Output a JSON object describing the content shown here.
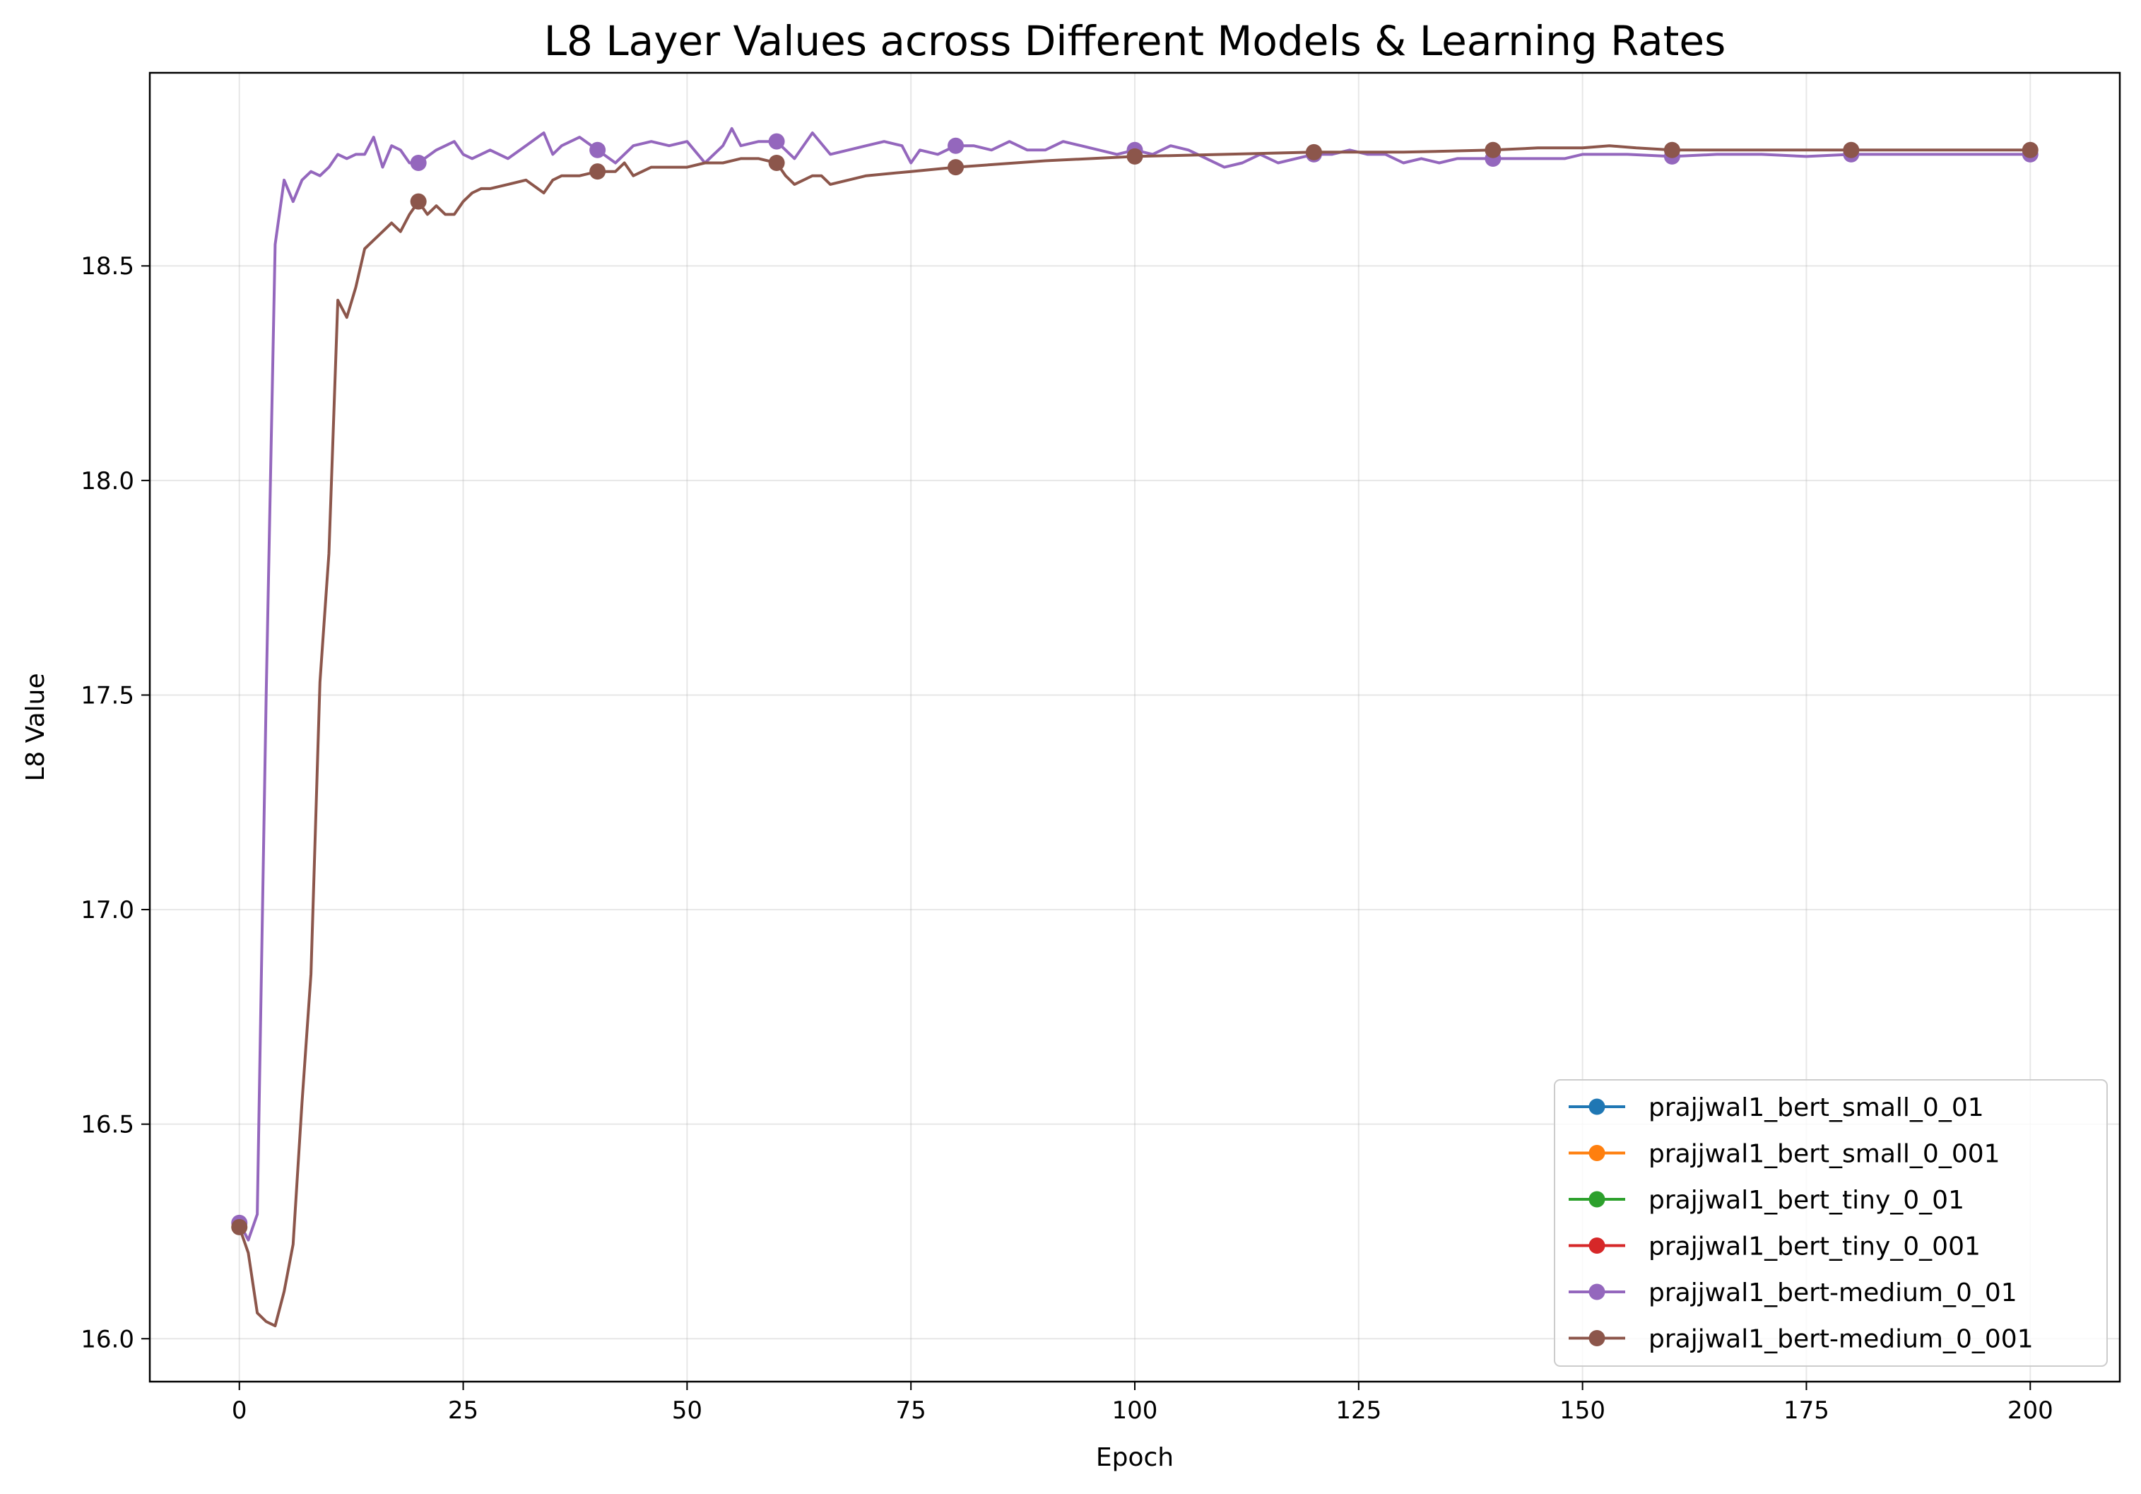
{
  "chart_data": {
    "type": "line",
    "title": "L8 Layer Values across Different Models & Learning Rates",
    "xlabel": "Epoch",
    "ylabel": "L8 Value",
    "xlim": [
      -10,
      210
    ],
    "ylim": [
      15.9,
      18.95
    ],
    "xticks": [
      0,
      25,
      50,
      75,
      100,
      125,
      150,
      175,
      200
    ],
    "yticks": [
      16.0,
      16.5,
      17.0,
      17.5,
      18.0,
      18.5
    ],
    "ytick_labels": [
      "16.0",
      "16.5",
      "17.0",
      "17.5",
      "18.0",
      "18.5"
    ],
    "grid": true,
    "legend_position": "lower right",
    "marker_every": 20,
    "series": [
      {
        "name": "prajjwal1_bert_small_0_01",
        "color": "#1f77b4",
        "x": [],
        "values": []
      },
      {
        "name": "prajjwal1_bert_small_0_001",
        "color": "#ff7f0e",
        "x": [],
        "values": []
      },
      {
        "name": "prajjwal1_bert_tiny_0_01",
        "color": "#2ca02c",
        "x": [],
        "values": []
      },
      {
        "name": "prajjwal1_bert_tiny_0_001",
        "color": "#d62728",
        "x": [],
        "values": []
      },
      {
        "name": "prajjwal1_bert-medium_0_01",
        "color": "#9467bd",
        "x": [
          0,
          1,
          2,
          3,
          4,
          5,
          6,
          7,
          8,
          9,
          10,
          11,
          12,
          13,
          14,
          15,
          16,
          17,
          18,
          19,
          20,
          22,
          24,
          25,
          26,
          28,
          30,
          32,
          34,
          35,
          36,
          38,
          40,
          42,
          44,
          46,
          48,
          50,
          52,
          54,
          55,
          56,
          58,
          60,
          62,
          64,
          66,
          68,
          70,
          72,
          74,
          75,
          76,
          78,
          80,
          82,
          84,
          86,
          88,
          90,
          92,
          94,
          96,
          98,
          100,
          102,
          104,
          106,
          108,
          110,
          112,
          114,
          116,
          118,
          120,
          122,
          124,
          126,
          128,
          130,
          132,
          134,
          136,
          138,
          140,
          142,
          144,
          146,
          148,
          150,
          155,
          160,
          165,
          170,
          175,
          180,
          185,
          190,
          195,
          200
        ],
        "values": [
          16.27,
          16.23,
          16.29,
          17.5,
          18.55,
          18.7,
          18.65,
          18.7,
          18.72,
          18.71,
          18.73,
          18.76,
          18.75,
          18.76,
          18.76,
          18.8,
          18.73,
          18.78,
          18.77,
          18.74,
          18.74,
          18.77,
          18.79,
          18.76,
          18.75,
          18.77,
          18.75,
          18.78,
          18.81,
          18.76,
          18.78,
          18.8,
          18.77,
          18.74,
          18.78,
          18.79,
          18.78,
          18.79,
          18.74,
          18.78,
          18.82,
          18.78,
          18.79,
          18.79,
          18.75,
          18.81,
          18.76,
          18.77,
          18.78,
          18.79,
          18.78,
          18.74,
          18.77,
          18.76,
          18.78,
          18.78,
          18.77,
          18.79,
          18.77,
          18.77,
          18.79,
          18.78,
          18.77,
          18.76,
          18.77,
          18.76,
          18.78,
          18.77,
          18.75,
          18.73,
          18.74,
          18.76,
          18.74,
          18.75,
          18.76,
          18.76,
          18.77,
          18.76,
          18.76,
          18.74,
          18.75,
          18.74,
          18.75,
          18.75,
          18.75,
          18.75,
          18.75,
          18.75,
          18.75,
          18.76,
          18.76,
          18.755,
          18.76,
          18.76,
          18.755,
          18.76,
          18.76,
          18.76,
          18.76,
          18.76
        ]
      },
      {
        "name": "prajjwal1_bert-medium_0_001",
        "color": "#8c564b",
        "x": [
          0,
          1,
          2,
          3,
          4,
          5,
          6,
          7,
          8,
          9,
          10,
          11,
          12,
          13,
          14,
          15,
          16,
          17,
          18,
          19,
          20,
          21,
          22,
          23,
          24,
          25,
          26,
          27,
          28,
          30,
          32,
          34,
          35,
          36,
          38,
          40,
          42,
          43,
          44,
          46,
          48,
          50,
          52,
          54,
          56,
          58,
          60,
          61,
          62,
          63,
          64,
          65,
          66,
          68,
          70,
          75,
          80,
          90,
          100,
          110,
          120,
          130,
          140,
          145,
          150,
          153,
          156,
          160,
          165,
          170,
          175,
          180,
          190,
          200
        ],
        "values": [
          16.26,
          16.2,
          16.06,
          16.04,
          16.03,
          16.11,
          16.22,
          16.55,
          16.85,
          17.53,
          17.83,
          18.42,
          18.38,
          18.45,
          18.54,
          18.56,
          18.58,
          18.6,
          18.58,
          18.62,
          18.65,
          18.62,
          18.64,
          18.62,
          18.62,
          18.65,
          18.67,
          18.68,
          18.68,
          18.69,
          18.7,
          18.67,
          18.7,
          18.71,
          18.71,
          18.72,
          18.72,
          18.74,
          18.71,
          18.73,
          18.73,
          18.73,
          18.74,
          18.74,
          18.75,
          18.75,
          18.74,
          18.71,
          18.69,
          18.7,
          18.71,
          18.71,
          18.69,
          18.7,
          18.71,
          18.72,
          18.73,
          18.745,
          18.755,
          18.76,
          18.765,
          18.765,
          18.77,
          18.775,
          18.775,
          18.78,
          18.775,
          18.77,
          18.77,
          18.77,
          18.77,
          18.77,
          18.77,
          18.77
        ]
      }
    ]
  }
}
